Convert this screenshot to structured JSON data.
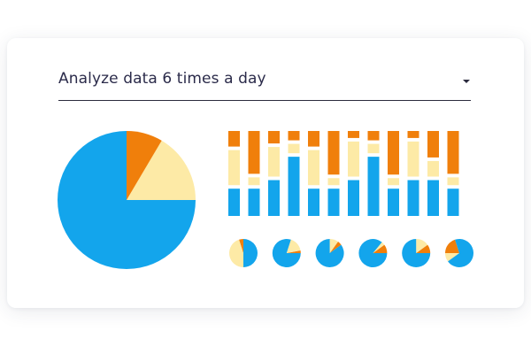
{
  "dropdown": {
    "selected_label": "Analyze data 6 times a day",
    "icon": "caret-down-icon"
  },
  "colors": {
    "blue": "#13a5ec",
    "yellow": "#fdeaa6",
    "orange": "#f07f0b",
    "text": "#2b2b4a",
    "line": "#2b2b3e"
  },
  "chart_data": [
    {
      "type": "pie",
      "categories": [
        "blue",
        "orange",
        "yellow"
      ],
      "values": [
        0.75,
        0.085,
        0.165
      ]
    },
    {
      "type": "bar",
      "stacked": true,
      "categories": [
        "1",
        "2",
        "3",
        "4",
        "5",
        "6",
        "7",
        "8",
        "9",
        "10",
        "11",
        "12"
      ],
      "series": [
        {
          "color": "blue",
          "values": [
            0.35,
            0.35,
            0.46,
            0.76,
            0.35,
            0.35,
            0.46,
            0.76,
            0.35,
            0.46,
            0.46,
            0.35
          ]
        },
        {
          "color": "yellow",
          "values": [
            0.45,
            0.1,
            0.38,
            0.12,
            0.45,
            0.09,
            0.45,
            0.12,
            0.09,
            0.45,
            0.2,
            0.1
          ]
        },
        {
          "color": "orange",
          "values": [
            0.2,
            0.55,
            0.16,
            0.12,
            0.2,
            0.56,
            0.09,
            0.12,
            0.56,
            0.09,
            0.34,
            0.55
          ]
        }
      ],
      "ylim": [
        0,
        1
      ]
    },
    {
      "type": "pie",
      "multiples": true,
      "items": [
        {
          "values": [
            0.5,
            0.05,
            0.45
          ],
          "start": 0.25
        },
        {
          "values": [
            0.8,
            0.03,
            0.17
          ],
          "start": 0.0
        },
        {
          "values": [
            0.85,
            0.05,
            0.1
          ],
          "start": 0.1
        },
        {
          "values": [
            0.86,
            0.1,
            0.04
          ],
          "start": 0.0
        },
        {
          "values": [
            0.75,
            0.1,
            0.15
          ],
          "start": 0.0
        },
        {
          "values": [
            0.7,
            0.2,
            0.1
          ],
          "start": 0.3
        }
      ]
    }
  ]
}
